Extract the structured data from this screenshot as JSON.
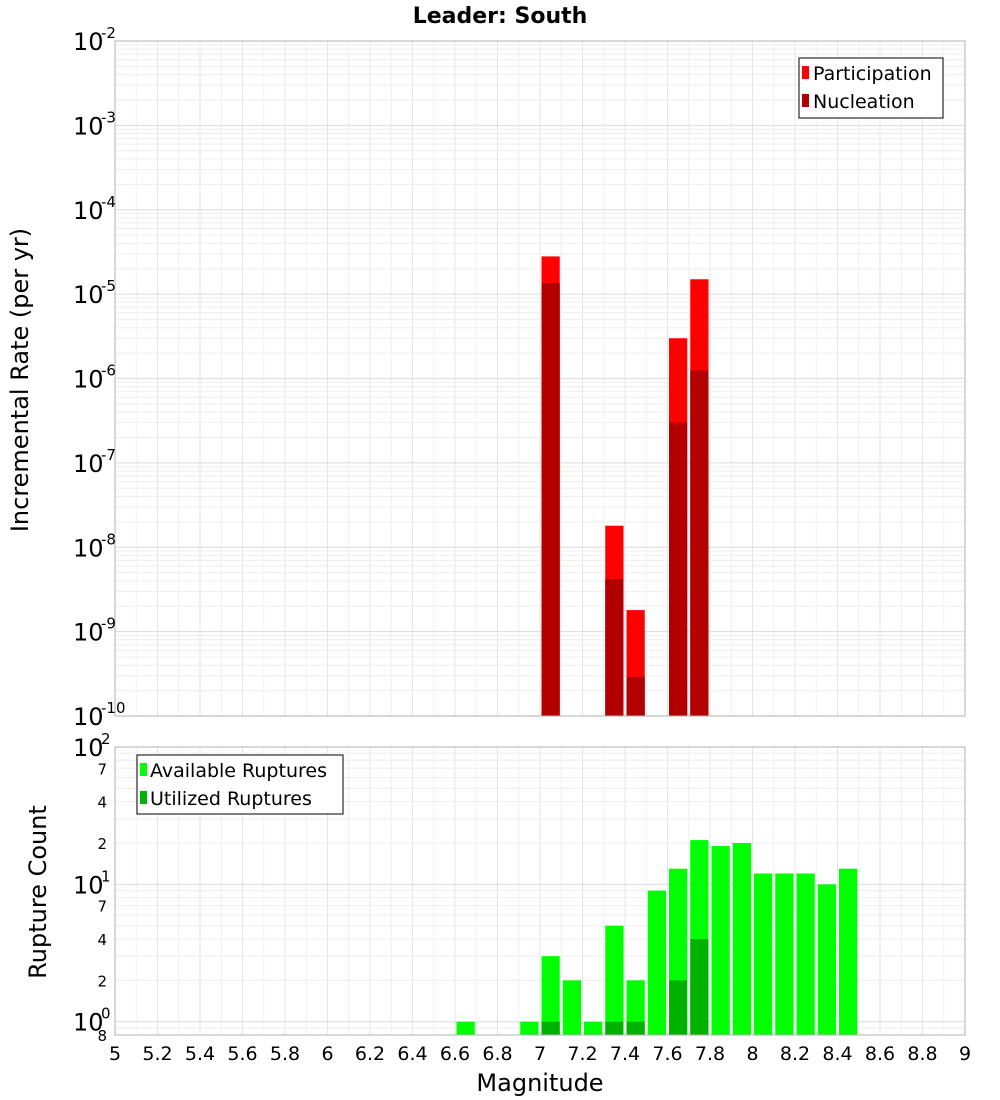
{
  "chart_data": [
    {
      "type": "bar",
      "title": "Leader: South",
      "xlabel": "",
      "ylabel": "Incremental Rate (per yr)",
      "yscale": "log",
      "ylim": [
        1e-10,
        0.01
      ],
      "xlim": [
        5,
        9
      ],
      "grid": true,
      "legend_position": "top-right",
      "legend": [
        "Participation",
        "Nucleation"
      ],
      "colors": {
        "Participation": "#ff0000",
        "Nucleation": "#b20000"
      },
      "x": [
        7.05,
        7.35,
        7.45,
        7.65,
        7.75
      ],
      "series": [
        {
          "name": "Participation",
          "values": [
            2.8e-05,
            1.8e-08,
            1.8e-09,
            3e-06,
            1.5e-05
          ]
        },
        {
          "name": "Nucleation",
          "values": [
            1.35e-05,
            4.2e-09,
            2.9e-10,
            3e-07,
            1.25e-06
          ]
        }
      ]
    },
    {
      "type": "bar",
      "title": "",
      "xlabel": "Magnitude",
      "ylabel": "Rupture Count",
      "yscale": "log",
      "ylim": [
        0.8,
        100
      ],
      "xlim": [
        5,
        9
      ],
      "xticks": [
        "5",
        "5.2",
        "5.4",
        "5.6",
        "5.8",
        "6",
        "6.2",
        "6.4",
        "6.6",
        "6.8",
        "7",
        "7.2",
        "7.4",
        "7.6",
        "7.8",
        "8",
        "8.2",
        "8.4",
        "8.6",
        "8.8",
        "9"
      ],
      "grid": true,
      "legend_position": "top-left",
      "legend": [
        "Available Ruptures",
        "Utilized Ruptures"
      ],
      "colors": {
        "Available Ruptures": "#00ff00",
        "Utilized Ruptures": "#00b200"
      },
      "x": [
        6.65,
        6.95,
        7.05,
        7.15,
        7.25,
        7.35,
        7.45,
        7.55,
        7.65,
        7.75,
        7.85,
        7.95,
        8.05,
        8.15,
        8.25,
        8.35,
        8.45
      ],
      "series": [
        {
          "name": "Available Ruptures",
          "values": [
            1,
            1,
            3,
            2,
            1,
            5,
            2,
            9,
            13,
            21,
            19,
            20,
            12,
            12,
            12,
            10,
            13
          ]
        },
        {
          "name": "Utilized Ruptures",
          "values": [
            0,
            0,
            1,
            0,
            0,
            1,
            1,
            0,
            2,
            4,
            0,
            0,
            0,
            0,
            0,
            0,
            0
          ]
        }
      ],
      "y_tick_labels": {
        "decades": [
          {
            "base": "10",
            "exp": "2"
          },
          {
            "base": "10",
            "exp": "1"
          },
          {
            "base": "10",
            "exp": "0"
          }
        ],
        "minor": [
          "7",
          "4",
          "2",
          "7",
          "4",
          "2",
          "8"
        ]
      }
    }
  ],
  "top_axis_labels": {
    "decades": [
      {
        "base": "10",
        "exp": "-2"
      },
      {
        "base": "10",
        "exp": "-3"
      },
      {
        "base": "10",
        "exp": "-4"
      },
      {
        "base": "10",
        "exp": "-5"
      },
      {
        "base": "10",
        "exp": "-6"
      },
      {
        "base": "10",
        "exp": "-7"
      },
      {
        "base": "10",
        "exp": "-8"
      },
      {
        "base": "10",
        "exp": "-9"
      },
      {
        "base": "10",
        "exp": "-10"
      }
    ]
  }
}
